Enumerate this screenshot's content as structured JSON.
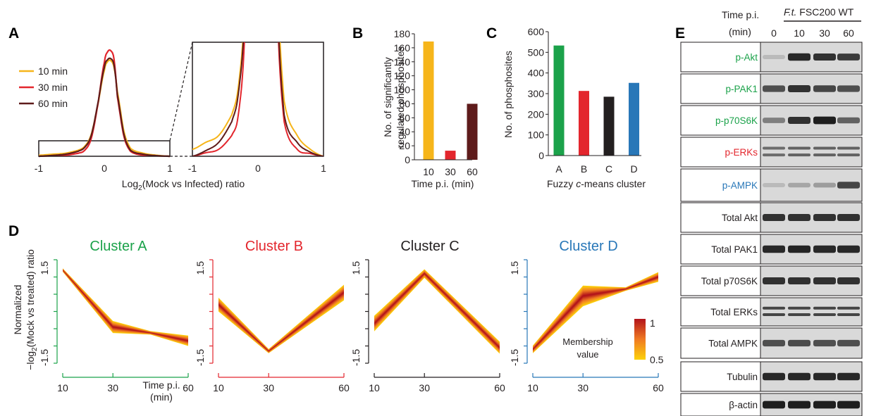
{
  "panels": {
    "a": "A",
    "b": "B",
    "c": "C",
    "d": "D",
    "e": "E"
  },
  "colors": {
    "t10": "#f6b51a",
    "t30": "#e3262d",
    "t60": "#5e1b1b",
    "clusterA": "#1ba24a",
    "clusterB": "#e3262d",
    "clusterC": "#231f20",
    "clusterD": "#2877b8",
    "memberHigh": "#b3141b",
    "memberLow": "#fcd20a"
  },
  "panelA": {
    "legend": [
      "10 min",
      "30 min",
      "60 min"
    ],
    "xticks_main": [
      "-1",
      "0",
      "1"
    ],
    "xticks_zoom": [
      "-1",
      "0",
      "1"
    ],
    "xlabel_pre": "Log",
    "xlabel_sub": "2",
    "xlabel_post": "(Mock vs Infected) ratio"
  },
  "panelB": {
    "ylabel_line1": "No. of significantly",
    "ylabel_line2": "regulated phosphosites",
    "xlabel": "Time p.i. (min)",
    "yticks": [
      "0",
      "20",
      "40",
      "60",
      "80",
      "100",
      "120",
      "140",
      "160",
      "180"
    ]
  },
  "panelC": {
    "ylabel": "No. of phosphosites",
    "xlabel_pre": "Fuzzy ",
    "xlabel_it": "c",
    "xlabel_post": "-means cluster",
    "yticks": [
      "0",
      "100",
      "200",
      "300",
      "400",
      "500",
      "600"
    ]
  },
  "panelD": {
    "titles": [
      "Cluster A",
      "Cluster B",
      "Cluster C",
      "Cluster D"
    ],
    "ylabel_line1": "Normalized",
    "ylabel_line2_pre": "−log",
    "ylabel_line2_sub": "2",
    "ylabel_line2_post": "(Mock vs treated) ratio",
    "ytick_top": "1.5",
    "ytick_bottom": "-1.5",
    "xticks": [
      "10",
      "30",
      "60"
    ],
    "xlabel_line1": "Time p.i.",
    "xlabel_line2": "(min)",
    "colorbar_title_1": "Membership",
    "colorbar_title_2": "value",
    "colorbar_max": "1",
    "colorbar_min": "0.5"
  },
  "panelE": {
    "time_label_1": "Time p.i.",
    "time_label_2": "(min)",
    "strain_italic": "F.t.",
    "strain_rest": " FSC200 WT",
    "lanes": [
      "0",
      "10",
      "30",
      "60"
    ],
    "blots": [
      {
        "label": "p-Akt",
        "color": "#1ba24a"
      },
      {
        "label": "p-PAK1",
        "color": "#1ba24a"
      },
      {
        "label": "p-p70S6K",
        "color": "#1ba24a"
      },
      {
        "label": "p-ERKs",
        "color": "#e3262d"
      },
      {
        "label": "p-AMPK",
        "color": "#2877b8"
      },
      {
        "label": "Total Akt",
        "color": "#231f20"
      },
      {
        "label": "Total PAK1",
        "color": "#231f20"
      },
      {
        "label": "Total p70S6K",
        "color": "#231f20"
      },
      {
        "label": "Total ERKs",
        "color": "#231f20"
      },
      {
        "label": "Total AMPK",
        "color": "#231f20"
      },
      {
        "label": "Tubulin",
        "color": "#231f20"
      },
      {
        "label": "β-actin",
        "color": "#231f20"
      }
    ],
    "band_intensity": [
      [
        0.15,
        0.9,
        0.85,
        0.8
      ],
      [
        0.7,
        0.85,
        0.75,
        0.7
      ],
      [
        0.45,
        0.85,
        0.95,
        0.6
      ],
      [
        0.55,
        0.6,
        0.6,
        0.6
      ],
      [
        0.15,
        0.25,
        0.3,
        0.75
      ],
      [
        0.85,
        0.85,
        0.85,
        0.85
      ],
      [
        0.9,
        0.92,
        0.9,
        0.9
      ],
      [
        0.85,
        0.85,
        0.85,
        0.85
      ],
      [
        0.75,
        0.75,
        0.75,
        0.75
      ],
      [
        0.7,
        0.72,
        0.7,
        0.7
      ],
      [
        0.9,
        0.9,
        0.9,
        0.9
      ],
      [
        0.95,
        0.95,
        0.95,
        0.95
      ]
    ]
  },
  "chart_data": [
    {
      "id": "panel-a",
      "type": "line",
      "x": [
        -1,
        -0.8,
        -0.6,
        -0.4,
        -0.3,
        -0.2,
        -0.1,
        0,
        0.05,
        0.1,
        0.15,
        0.2,
        0.3,
        0.4,
        0.6,
        0.8,
        1
      ],
      "series": [
        {
          "name": "10 min",
          "values": [
            0.01,
            0.02,
            0.03,
            0.06,
            0.1,
            0.22,
            0.52,
            0.87,
            0.96,
            0.97,
            0.9,
            0.65,
            0.25,
            0.08,
            0.03,
            0.01,
            0
          ]
        },
        {
          "name": "30 min",
          "values": [
            0,
            0.005,
            0.01,
            0.03,
            0.06,
            0.18,
            0.52,
            0.95,
            1.06,
            1.07,
            0.98,
            0.6,
            0.2,
            0.05,
            0.01,
            0.004,
            0
          ]
        },
        {
          "name": "60 min",
          "values": [
            0,
            0.008,
            0.02,
            0.05,
            0.09,
            0.21,
            0.53,
            0.9,
            0.98,
            0.99,
            0.92,
            0.62,
            0.22,
            0.06,
            0.02,
            0.006,
            0
          ]
        }
      ],
      "xlim": [
        -1,
        1
      ]
    },
    {
      "id": "panel-b",
      "type": "bar",
      "categories": [
        "10",
        "30",
        "60"
      ],
      "values": [
        169,
        13,
        80
      ],
      "bar_colors": [
        "#f6b51a",
        "#e3262d",
        "#5e1b1b"
      ],
      "ylim": [
        0,
        180
      ]
    },
    {
      "id": "panel-c",
      "type": "bar",
      "categories": [
        "A",
        "B",
        "C",
        "D"
      ],
      "values": [
        533,
        313,
        285,
        352
      ],
      "bar_colors": [
        "#1ba24a",
        "#e3262d",
        "#231f20",
        "#2877b8"
      ],
      "ylim": [
        0,
        600
      ]
    },
    {
      "id": "panel-d",
      "type": "line",
      "x": [
        10,
        30,
        60
      ],
      "ylim": [
        -1.5,
        1.5
      ],
      "clusters": [
        {
          "name": "Cluster A",
          "knots": [
            [
              10,
              1.2
            ],
            [
              30,
              -0.45
            ],
            [
              45,
              -0.62
            ],
            [
              60,
              -0.85
            ]
          ],
          "spread": [
            0.1,
            0.35,
            0.1,
            0.3
          ]
        },
        {
          "name": "Cluster B",
          "knots": [
            [
              10,
              0.2
            ],
            [
              30,
              -1.15
            ],
            [
              60,
              0.55
            ]
          ],
          "spread": [
            0.4,
            0.12,
            0.45
          ]
        },
        {
          "name": "Cluster C",
          "knots": [
            [
              10,
              -0.35
            ],
            [
              30,
              1.1
            ],
            [
              60,
              -1.05
            ]
          ],
          "spread": [
            0.45,
            0.25,
            0.35
          ]
        },
        {
          "name": "Cluster D",
          "knots": [
            [
              10,
              -1.1
            ],
            [
              30,
              0.45
            ],
            [
              47,
              0.65
            ],
            [
              60,
              1.0
            ]
          ],
          "spread": [
            0.22,
            0.6,
            0.1,
            0.28
          ]
        }
      ]
    }
  ]
}
